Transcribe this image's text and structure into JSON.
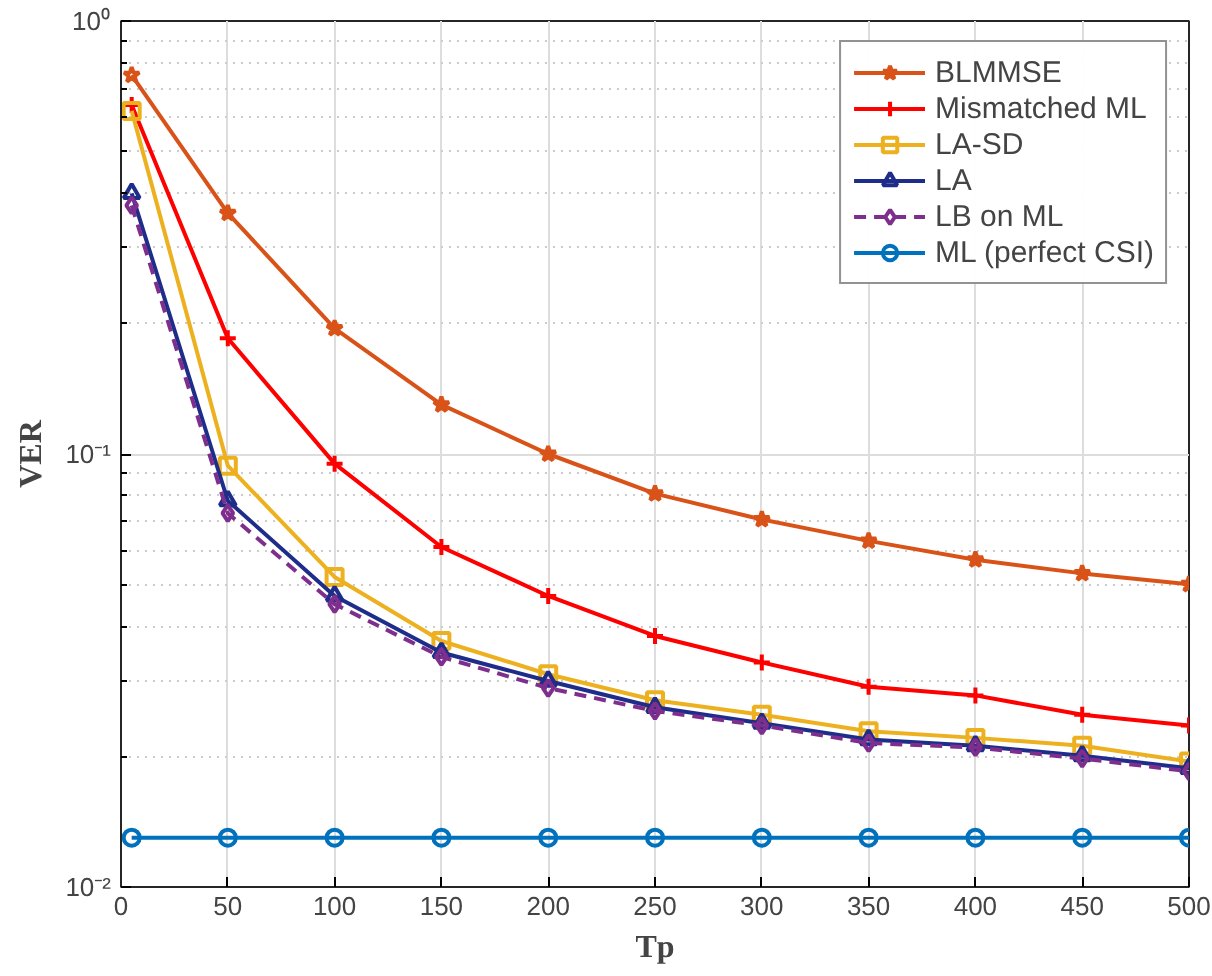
{
  "chart_data": {
    "type": "line",
    "xlabel": "Tp",
    "ylabel": "VER",
    "log": "y",
    "grid": true,
    "legend": "top right",
    "line_style": "solid",
    "xlim": [
      0,
      500
    ],
    "ylim": [
      0.01,
      1
    ],
    "xticks": [
      0,
      50,
      100,
      150,
      200,
      250,
      300,
      350,
      400,
      450,
      500
    ],
    "yticks": [
      {
        "value": 0.01,
        "label": "10⁻²"
      },
      {
        "value": 0.1,
        "label": "10⁻¹"
      },
      {
        "value": 1,
        "label": "10⁰"
      }
    ],
    "x": [
      5,
      50,
      100,
      150,
      200,
      250,
      300,
      350,
      400,
      450,
      500
    ],
    "series": [
      {
        "name": "BLMMSE",
        "color": "#d95319",
        "marker": "star",
        "values": [
          0.75,
          0.36,
          0.195,
          0.13,
          0.1,
          0.081,
          0.0706,
          0.063,
          0.057,
          0.053,
          0.05
        ]
      },
      {
        "name": "Mismatched ML",
        "color": "#ff0000",
        "marker": "cross",
        "values": [
          0.64,
          0.185,
          0.095,
          0.061,
          0.047,
          0.038,
          0.033,
          0.029,
          0.0277,
          0.025,
          0.0236
        ]
      },
      {
        "name": "LA-SD",
        "color": "#edb120",
        "marker": "square",
        "values": [
          0.62,
          0.094,
          0.052,
          0.037,
          0.031,
          0.027,
          0.025,
          0.0229,
          0.0221,
          0.0212,
          0.0195
        ]
      },
      {
        "name": "LA",
        "color": "#1f2d8a",
        "marker": "triangle",
        "values": [
          0.4,
          0.078,
          0.047,
          0.0348,
          0.0299,
          0.026,
          0.0239,
          0.0219,
          0.0212,
          0.0201,
          0.0188
        ]
      },
      {
        "name": "LB on ML",
        "color": "#7e2f8e",
        "marker": "diamond",
        "line_style": "dashed",
        "values": [
          0.375,
          0.073,
          0.045,
          0.034,
          0.0288,
          0.0255,
          0.0236,
          0.0215,
          0.021,
          0.0198,
          0.0185
        ]
      },
      {
        "name": "ML (perfect CSI)",
        "color": "#0072bd",
        "marker": "circle",
        "values": [
          0.013,
          0.013,
          0.013,
          0.013,
          0.013,
          0.013,
          0.013,
          0.013,
          0.013,
          0.013,
          0.013
        ]
      }
    ]
  }
}
